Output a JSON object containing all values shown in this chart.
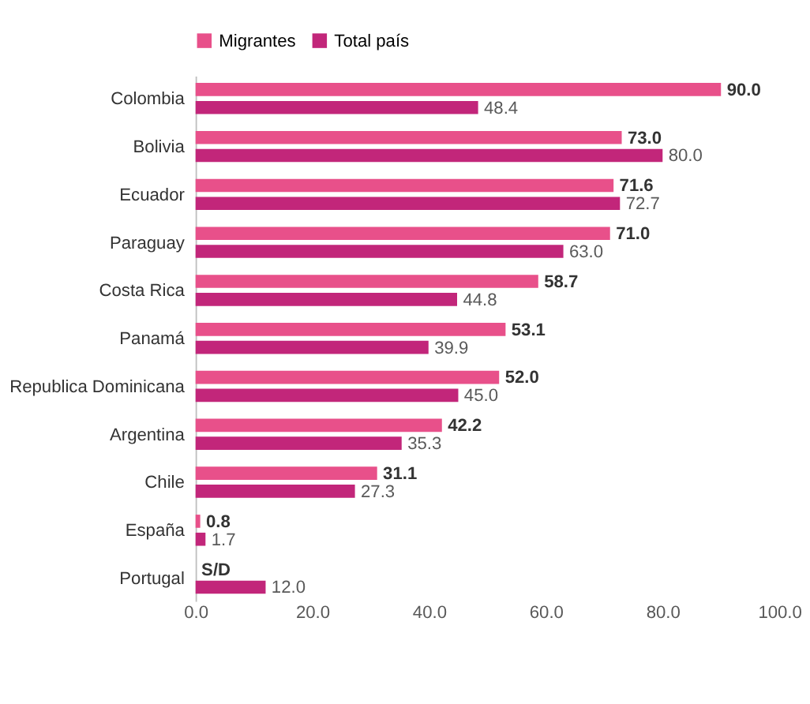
{
  "chart_data": {
    "type": "bar",
    "orientation": "horizontal",
    "categories": [
      "Colombia",
      "Bolivia",
      "Ecuador",
      "Paraguay",
      "Costa Rica",
      "Panamá",
      "Republica Dominicana",
      "Argentina",
      "Chile",
      "España",
      "Portugal"
    ],
    "series": [
      {
        "name": "Migrantes",
        "color": "#e8508a",
        "values": [
          90.0,
          73.0,
          71.6,
          71.0,
          58.7,
          53.1,
          52.0,
          42.2,
          31.1,
          0.8,
          null
        ],
        "value_labels": [
          "90.0",
          "73.0",
          "71.6",
          "71.0",
          "58.7",
          "53.1",
          "52.0",
          "42.2",
          "31.1",
          "0.8",
          "S/D"
        ]
      },
      {
        "name": "Total país",
        "color": "#c2267a",
        "values": [
          48.4,
          80.0,
          72.7,
          63.0,
          44.8,
          39.9,
          45.0,
          35.3,
          27.3,
          1.7,
          12.0
        ],
        "value_labels": [
          "48.4",
          "80.0",
          "72.7",
          "63.0",
          "44.8",
          "39.9",
          "45.0",
          "35.3",
          "27.3",
          "1.7",
          "12.0"
        ]
      }
    ],
    "xlim": [
      0,
      100
    ],
    "xticks": [
      {
        "value": 0,
        "label": "0.0"
      },
      {
        "value": 20,
        "label": "20.0"
      },
      {
        "value": 40,
        "label": "40.0"
      },
      {
        "value": 60,
        "label": "60.0"
      },
      {
        "value": 80,
        "label": "80.0"
      },
      {
        "value": 100,
        "label": "100.0"
      }
    ],
    "legend": "top",
    "grid": false
  }
}
